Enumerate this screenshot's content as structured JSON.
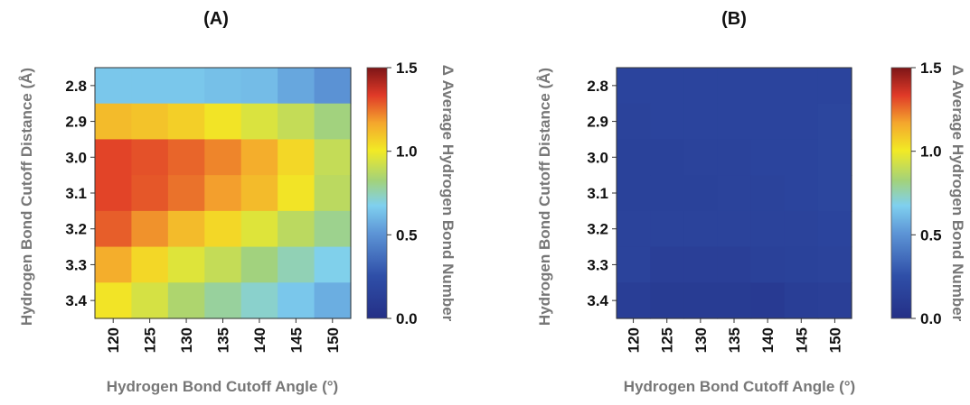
{
  "chart_data": [
    {
      "type": "heatmap",
      "title": "(A)",
      "xlabel": "Hydrogen Bond Cutoff Angle (°)",
      "ylabel": "Hydrogen Bond Cutoff Distance (Å)",
      "x": [
        "120",
        "125",
        "130",
        "135",
        "140",
        "145",
        "150"
      ],
      "y": [
        "2.8",
        "2.9",
        "3.0",
        "3.1",
        "3.2",
        "3.3",
        "3.4"
      ],
      "values": [
        [
          0.65,
          0.65,
          0.65,
          0.63,
          0.62,
          0.56,
          0.5
        ],
        [
          1.12,
          1.1,
          1.07,
          1.02,
          0.95,
          0.9,
          0.82
        ],
        [
          1.32,
          1.3,
          1.27,
          1.22,
          1.15,
          1.05,
          0.9
        ],
        [
          1.32,
          1.29,
          1.25,
          1.18,
          1.12,
          1.02,
          0.88
        ],
        [
          1.28,
          1.2,
          1.12,
          1.05,
          0.96,
          0.88,
          0.8
        ],
        [
          1.15,
          1.05,
          0.96,
          0.9,
          0.82,
          0.75,
          0.68
        ],
        [
          1.02,
          0.94,
          0.85,
          0.78,
          0.72,
          0.65,
          0.58
        ]
      ],
      "colorbar": {
        "label": "Δ Average Hydrogen Bond Number",
        "range": [
          0.0,
          1.5
        ],
        "ticks": [
          "0.0",
          "0.5",
          "1.0",
          "1.5"
        ]
      }
    },
    {
      "type": "heatmap",
      "title": "(B)",
      "xlabel": "Hydrogen Bond Cutoff Angle (°)",
      "ylabel": "Hydrogen Bond Cutoff Distance (Å)",
      "x": [
        "120",
        "125",
        "130",
        "135",
        "140",
        "145",
        "150"
      ],
      "y": [
        "2.8",
        "2.9",
        "3.0",
        "3.1",
        "3.2",
        "3.3",
        "3.4"
      ],
      "values": [
        [
          0.17,
          0.17,
          0.17,
          0.17,
          0.17,
          0.17,
          0.17
        ],
        [
          0.16,
          0.17,
          0.17,
          0.17,
          0.17,
          0.17,
          0.18
        ],
        [
          0.15,
          0.15,
          0.16,
          0.16,
          0.17,
          0.17,
          0.18
        ],
        [
          0.15,
          0.15,
          0.15,
          0.16,
          0.16,
          0.17,
          0.18
        ],
        [
          0.16,
          0.16,
          0.16,
          0.16,
          0.16,
          0.16,
          0.17
        ],
        [
          0.16,
          0.13,
          0.13,
          0.13,
          0.14,
          0.15,
          0.16
        ],
        [
          0.12,
          0.1,
          0.1,
          0.1,
          0.09,
          0.12,
          0.13
        ]
      ],
      "colorbar": {
        "label": "Δ Average Hydrogen Bond Number",
        "range": [
          0.0,
          1.5
        ],
        "ticks": [
          "0.0",
          "0.5",
          "1.0",
          "1.5"
        ]
      }
    }
  ]
}
